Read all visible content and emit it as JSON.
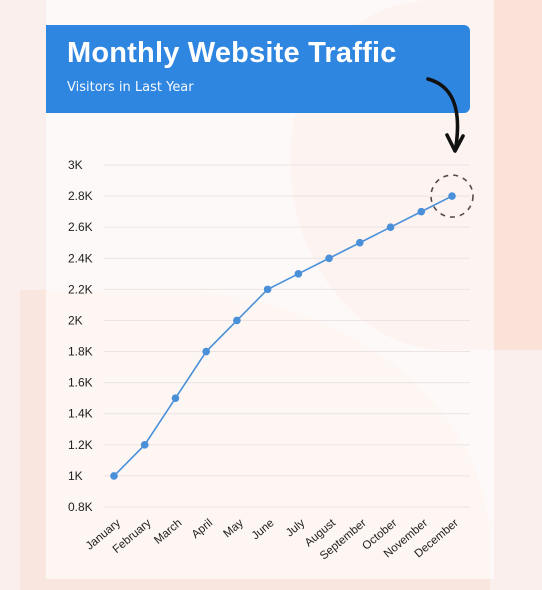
{
  "header": {
    "title": "Monthly Website Traffic",
    "subtitle": "Visitors in Last Year"
  },
  "colors": {
    "accent": "#2f86e0",
    "line": "#4a90d9",
    "background": "#faefec"
  },
  "chart_data": {
    "type": "line",
    "title": "Monthly Website Traffic",
    "subtitle": "Visitors in Last Year",
    "xlabel": "",
    "ylabel": "",
    "categories": [
      "January",
      "February",
      "March",
      "April",
      "May",
      "June",
      "July",
      "August",
      "September",
      "October",
      "November",
      "December"
    ],
    "values": [
      1000,
      1200,
      1500,
      1800,
      2000,
      2200,
      2300,
      2400,
      2500,
      2600,
      2700,
      2800
    ],
    "ylim": [
      800,
      3000
    ],
    "yticks": [
      800,
      1000,
      1200,
      1400,
      1600,
      1800,
      2000,
      2200,
      2400,
      2600,
      2800,
      3000
    ],
    "ytick_labels": [
      "0.8K",
      "1K",
      "1.2K",
      "1.4K",
      "1.6K",
      "1.8K",
      "2K",
      "2.2K",
      "2.4K",
      "2.6K",
      "2.8K",
      "3K"
    ],
    "grid": true,
    "highlight": "December"
  }
}
